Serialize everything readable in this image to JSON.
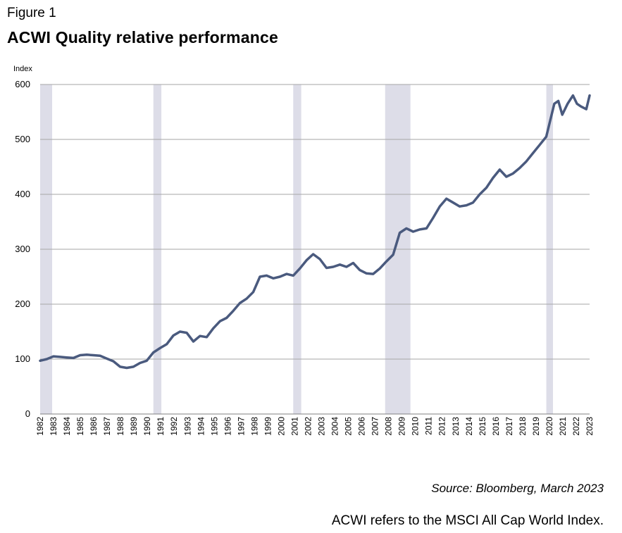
{
  "figure_label": "Figure 1",
  "title": "ACWI Quality relative performance",
  "source": "Source: Bloomberg, March 2023",
  "note": "ACWI refers to the MSCI All Cap World Index.",
  "colors": {
    "line": "#4a5a7e",
    "recession": "#dddde8",
    "grid": "#a6a6a6"
  },
  "chart_data": {
    "type": "line",
    "ylabel": "Index",
    "ylim": [
      0,
      600
    ],
    "yticks": [
      0,
      100,
      200,
      300,
      400,
      500,
      600
    ],
    "xlim": [
      1982.0,
      2023.25
    ],
    "xtick_labels": [
      "1982",
      "1983",
      "1984",
      "1985",
      "1986",
      "1987",
      "1988",
      "1989",
      "1990",
      "1991",
      "1992",
      "1993",
      "1994",
      "1995",
      "1996",
      "1997",
      "1998",
      "1999",
      "2000",
      "2001",
      "2002",
      "2003",
      "2004",
      "2005",
      "2006",
      "2007",
      "2008",
      "2009",
      "2010",
      "2011",
      "2012",
      "2013",
      "2014",
      "2015",
      "2016",
      "2017",
      "2018",
      "2019",
      "2020",
      "2021",
      "2022",
      "2023"
    ],
    "grid": "horizontal",
    "shaded_periods": [
      [
        1982.0,
        1982.9
      ],
      [
        1990.5,
        1991.1
      ],
      [
        2001.0,
        2001.6
      ],
      [
        2007.9,
        2009.8
      ],
      [
        2020.0,
        2020.5
      ]
    ],
    "series": [
      {
        "x": [
          1982.0,
          1982.5,
          1983.0,
          1983.5,
          1984.0,
          1984.5,
          1985.0,
          1985.5,
          1986.0,
          1986.5,
          1987.0,
          1987.5,
          1988.0,
          1988.5,
          1989.0,
          1989.5,
          1990.0,
          1990.5,
          1991.0,
          1991.5,
          1992.0,
          1992.5,
          1993.0,
          1993.5,
          1994.0,
          1994.5,
          1995.0,
          1995.5,
          1996.0,
          1996.5,
          1997.0,
          1997.5,
          1998.0,
          1998.5,
          1999.0,
          1999.5,
          2000.0,
          2000.5,
          2001.0,
          2001.5,
          2002.0,
          2002.5,
          2003.0,
          2003.5,
          2004.0,
          2004.5,
          2005.0,
          2005.5,
          2006.0,
          2006.5,
          2007.0,
          2007.5,
          2008.0,
          2008.5,
          2009.0,
          2009.5,
          2010.0,
          2010.5,
          2011.0,
          2011.5,
          2012.0,
          2012.5,
          2013.0,
          2013.5,
          2014.0,
          2014.5,
          2015.0,
          2015.5,
          2016.0,
          2016.5,
          2017.0,
          2017.5,
          2018.0,
          2018.5,
          2019.0,
          2019.5,
          2020.0,
          2020.3,
          2020.6,
          2020.9,
          2021.2,
          2021.6,
          2022.0,
          2022.3,
          2022.6,
          2023.0,
          2023.25
        ],
        "values": [
          97,
          100,
          105,
          104,
          103,
          102,
          107,
          108,
          107,
          106,
          101,
          96,
          86,
          84,
          86,
          93,
          97,
          112,
          120,
          127,
          143,
          150,
          148,
          132,
          142,
          140,
          156,
          169,
          175,
          188,
          202,
          210,
          222,
          250,
          252,
          247,
          250,
          255,
          252,
          265,
          280,
          291,
          282,
          266,
          268,
          272,
          268,
          275,
          262,
          256,
          255,
          265,
          278,
          290,
          330,
          338,
          332,
          336,
          338,
          357,
          378,
          392,
          385,
          378,
          380,
          385,
          400,
          412,
          430,
          445,
          432,
          438,
          448,
          460,
          475,
          490,
          505,
          535,
          565,
          570,
          545,
          565,
          580,
          565,
          560,
          555,
          580
        ]
      }
    ]
  }
}
